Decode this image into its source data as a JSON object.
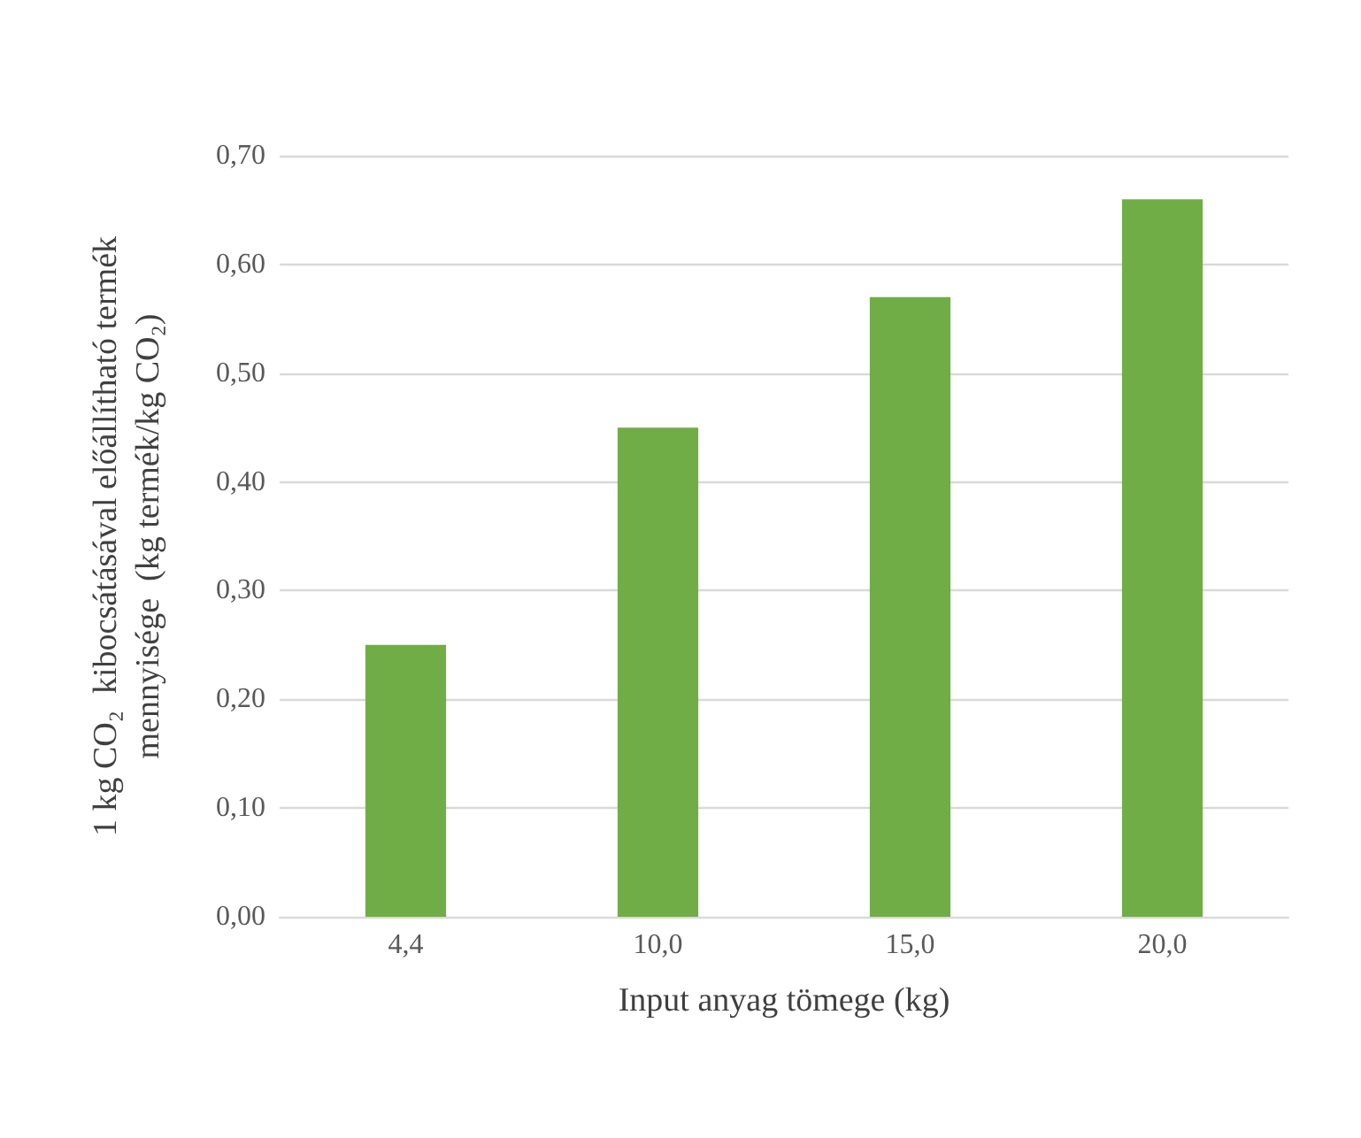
{
  "chart_data": {
    "type": "bar",
    "xlabel": "Input anyag tömege (kg)",
    "ylabel": "1 kg CO₂  kibocsátásával előállítható termék\nmennyisége  (kg termék/kg CO₂)",
    "categories": [
      "4,4",
      "10,0",
      "15,0",
      "20,0"
    ],
    "values": [
      0.25,
      0.45,
      0.57,
      0.66
    ],
    "color": "#70ad47",
    "ylim": [
      0,
      0.7
    ],
    "yticks": [
      {
        "value": 0,
        "label": "0,00"
      },
      {
        "value": 0.1,
        "label": "0,10"
      },
      {
        "value": 0.2,
        "label": "0,20"
      },
      {
        "value": 0.3,
        "label": "0,30"
      },
      {
        "value": 0.4,
        "label": "0,40"
      },
      {
        "value": 0.5,
        "label": "0,50"
      },
      {
        "value": 0.6,
        "label": "0,60"
      },
      {
        "value": 0.7,
        "label": "0,70"
      }
    ],
    "grid": "y"
  }
}
